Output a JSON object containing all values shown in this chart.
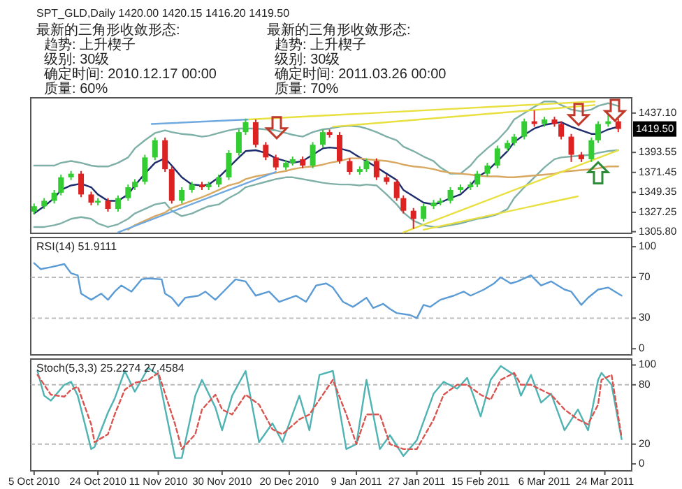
{
  "chart_data": [
    {
      "type": "candlestick",
      "title": "SPT_GLD,Daily  1420.00 1420.15 1416.20 1419.50",
      "annotations": [
        "最新的三角形收敛形态:",
        "  趋势: 上升楔子",
        "  级别: 30级",
        "  确定时间: 2010.12.17 00:00",
        "  质量: 60%",
        "最新的三角形收敛形态:",
        "  趋势: 上升楔子",
        "  级别: 30级",
        "  确定时间: 2011.03.26 00:00",
        "  质量: 70%",
        {
          "text": "1419.50",
          "y": 1419.5
        }
      ],
      "x": [
        "2010-10-05",
        "2010-10-08",
        "2010-10-11",
        "2010-10-13",
        "2010-10-16",
        "2010-10-19",
        "2010-10-22",
        "2010-10-24",
        "2010-10-27",
        "2010-10-30",
        "2010-11-02",
        "2010-11-04",
        "2010-11-07",
        "2010-11-10",
        "2010-11-13",
        "2010-11-15",
        "2010-11-18",
        "2010-11-21",
        "2010-11-24",
        "2010-11-26",
        "2010-11-29",
        "2010-12-02",
        "2010-12-05",
        "2010-12-07",
        "2010-12-10",
        "2010-12-13",
        "2010-12-16",
        "2010-12-19",
        "2010-12-21",
        "2010-12-24",
        "2010-12-27",
        "2010-12-30",
        "2011-01-01",
        "2011-01-04",
        "2011-01-07",
        "2011-01-10",
        "2011-01-12",
        "2011-01-15",
        "2011-01-18",
        "2011-01-21",
        "2011-01-23",
        "2011-01-26",
        "2011-01-29",
        "2011-02-01",
        "2011-02-03",
        "2011-02-06",
        "2011-02-09",
        "2011-02-12",
        "2011-02-14",
        "2011-02-17",
        "2011-02-20",
        "2011-02-23",
        "2011-02-25",
        "2011-02-28",
        "2011-03-03",
        "2011-03-06",
        "2011-03-09",
        "2011-03-11",
        "2011-03-14",
        "2011-03-17",
        "2011-03-20",
        "2011-03-22",
        "2011-03-25",
        "2011-03-28"
      ],
      "ohlc": [
        [
          1328,
          1337,
          1325,
          1334
        ],
        [
          1334,
          1343,
          1331,
          1340
        ],
        [
          1340,
          1352,
          1337,
          1349
        ],
        [
          1349,
          1369,
          1346,
          1366
        ],
        [
          1366,
          1373,
          1363,
          1370
        ],
        [
          1370,
          1373,
          1344,
          1347
        ],
        [
          1347,
          1350,
          1335,
          1338
        ],
        [
          1338,
          1343,
          1335,
          1340
        ],
        [
          1340,
          1343,
          1328,
          1331
        ],
        [
          1331,
          1346,
          1328,
          1343
        ],
        [
          1343,
          1358,
          1340,
          1355
        ],
        [
          1355,
          1364,
          1352,
          1361
        ],
        [
          1361,
          1391,
          1358,
          1388
        ],
        [
          1388,
          1410,
          1385,
          1407
        ],
        [
          1407,
          1410,
          1372,
          1375
        ],
        [
          1375,
          1378,
          1337,
          1340
        ],
        [
          1340,
          1355,
          1337,
          1352
        ],
        [
          1352,
          1361,
          1349,
          1358
        ],
        [
          1358,
          1361,
          1352,
          1355
        ],
        [
          1355,
          1361,
          1352,
          1358
        ],
        [
          1358,
          1369,
          1355,
          1366
        ],
        [
          1366,
          1396,
          1363,
          1393
        ],
        [
          1393,
          1419,
          1390,
          1416
        ],
        [
          1416,
          1431,
          1413,
          1427
        ],
        [
          1427,
          1430,
          1399,
          1402
        ],
        [
          1402,
          1405,
          1385,
          1388
        ],
        [
          1388,
          1391,
          1374,
          1377
        ],
        [
          1377,
          1385,
          1374,
          1382
        ],
        [
          1382,
          1389,
          1379,
          1386
        ],
        [
          1386,
          1389,
          1376,
          1379
        ],
        [
          1379,
          1405,
          1376,
          1402
        ],
        [
          1402,
          1419,
          1399,
          1416
        ],
        [
          1416,
          1419,
          1410,
          1413
        ],
        [
          1413,
          1416,
          1381,
          1384
        ],
        [
          1384,
          1387,
          1369,
          1372
        ],
        [
          1372,
          1378,
          1369,
          1375
        ],
        [
          1375,
          1387,
          1372,
          1384
        ],
        [
          1384,
          1387,
          1363,
          1366
        ],
        [
          1366,
          1369,
          1358,
          1361
        ],
        [
          1361,
          1364,
          1340,
          1343
        ],
        [
          1343,
          1346,
          1326,
          1329
        ],
        [
          1329,
          1332,
          1309,
          1320
        ],
        [
          1320,
          1337,
          1317,
          1334
        ],
        [
          1334,
          1341,
          1331,
          1338
        ],
        [
          1338,
          1343,
          1335,
          1340
        ],
        [
          1340,
          1355,
          1337,
          1352
        ],
        [
          1352,
          1358,
          1349,
          1355
        ],
        [
          1355,
          1361,
          1352,
          1358
        ],
        [
          1358,
          1373,
          1355,
          1370
        ],
        [
          1370,
          1382,
          1367,
          1379
        ],
        [
          1379,
          1401,
          1376,
          1398
        ],
        [
          1398,
          1407,
          1395,
          1404
        ],
        [
          1404,
          1414,
          1401,
          1411
        ],
        [
          1411,
          1431,
          1408,
          1428
        ],
        [
          1428,
          1440,
          1422,
          1425
        ],
        [
          1425,
          1433,
          1422,
          1430
        ],
        [
          1430,
          1433,
          1422,
          1425
        ],
        [
          1425,
          1428,
          1408,
          1411
        ],
        [
          1411,
          1414,
          1383,
          1391
        ],
        [
          1391,
          1394,
          1383,
          1386
        ],
        [
          1386,
          1410,
          1383,
          1407
        ],
        [
          1407,
          1428,
          1404,
          1425
        ],
        [
          1425,
          1437,
          1422,
          1428
        ],
        [
          1428,
          1431,
          1416,
          1419.5
        ]
      ],
      "series": [
        {
          "type": "line",
          "color": "#1c2c6c",
          "values": [
            1326,
            1334,
            1343,
            1352,
            1357,
            1359,
            1355,
            1347,
            1340,
            1340,
            1347,
            1357,
            1370,
            1382,
            1387,
            1379,
            1366,
            1358,
            1357,
            1358,
            1366,
            1377,
            1388,
            1395,
            1396,
            1393,
            1387,
            1384,
            1382,
            1384,
            1391,
            1398,
            1399,
            1398,
            1395,
            1388,
            1384,
            1377,
            1370,
            1363,
            1352,
            1345,
            1338,
            1336,
            1338,
            1343,
            1347,
            1357,
            1366,
            1373,
            1384,
            1395,
            1405,
            1413,
            1420,
            1424,
            1426,
            1427,
            1422,
            1418,
            1414,
            1414,
            1419,
            1422
          ]
        },
        {
          "type": "line",
          "color": "#7fb0a8",
          "values": [
            1379,
            1379,
            1379,
            1382,
            1384,
            1382,
            1379,
            1378,
            1378,
            1382,
            1388,
            1398,
            1407,
            1415,
            1418,
            1416,
            1414,
            1413,
            1411,
            1412,
            1415,
            1418,
            1420,
            1420,
            1420,
            1419,
            1418,
            1415,
            1413,
            1411,
            1416,
            1419,
            1420,
            1422,
            1423,
            1422,
            1420,
            1416,
            1411,
            1407,
            1400,
            1395,
            1389,
            1384,
            1377,
            1370,
            1370,
            1379,
            1388,
            1398,
            1407,
            1419,
            1430,
            1437,
            1444,
            1450,
            1450,
            1446,
            1441,
            1439,
            1441,
            1445,
            1448,
            1445
          ]
        },
        {
          "type": "line",
          "color": "#7fb0a8",
          "values": [
            1311,
            1311,
            1313,
            1315,
            1320,
            1322,
            1320,
            1315,
            1311,
            1314,
            1320,
            1326,
            1331,
            1336,
            1338,
            1329,
            1323,
            1326,
            1331,
            1334,
            1336,
            1343,
            1349,
            1355,
            1358,
            1361,
            1364,
            1366,
            1366,
            1364,
            1362,
            1360,
            1359,
            1358,
            1358,
            1357,
            1358,
            1357,
            1347,
            1336,
            1327,
            1318,
            1313,
            1311,
            1311,
            1313,
            1315,
            1318,
            1320,
            1322,
            1325,
            1331,
            1343,
            1355,
            1366,
            1377,
            1386,
            1388,
            1389,
            1390,
            1391,
            1393,
            1395,
            1396
          ]
        },
        {
          "type": "line",
          "color": "#d9a860",
          "values": [
            null,
            null,
            null,
            null,
            null,
            null,
            null,
            null,
            null,
            null,
            1308,
            1313,
            1318,
            1323,
            1327,
            1332,
            1336,
            1340,
            1344,
            1347,
            1352,
            1357,
            1360,
            1364,
            1367,
            1369,
            1371,
            1373,
            1375,
            1377,
            1378,
            1380,
            1382,
            1384,
            1387,
            1387,
            1386,
            1385,
            1384,
            1382,
            1380,
            1378,
            1377,
            1375,
            1373,
            1371,
            1370,
            1369,
            1368,
            1367,
            1367,
            1366,
            1366,
            1367,
            1368,
            1369,
            1370,
            1372,
            1373,
            1374,
            1375,
            1376,
            1378,
            1378
          ]
        },
        {
          "type": "line",
          "color": "#70a8e0",
          "x": [
            "2010-11-09",
            "2010-12-08"
          ],
          "values": [
            1425,
            1430
          ]
        },
        {
          "type": "line",
          "color": "#70a8e0",
          "x": [
            "2010-10-30",
            "2010-12-16"
          ],
          "values": [
            1305,
            1372
          ]
        },
        {
          "type": "line",
          "color": "#e8e040",
          "x": [
            "2010-12-08",
            "2011-03-21"
          ],
          "values": [
            1430,
            1450
          ]
        },
        {
          "type": "line",
          "color": "#e8e040",
          "x": [
            "2011-01-02",
            "2011-03-21"
          ],
          "values": [
            1422,
            1446
          ]
        },
        {
          "type": "line",
          "color": "#e8e040",
          "x": [
            "2011-01-23",
            "2011-03-28"
          ],
          "values": [
            1305,
            1396
          ]
        },
        {
          "type": "line",
          "color": "#e8e040",
          "x": [
            "2011-01-29",
            "2011-03-16"
          ],
          "values": [
            1308,
            1345
          ]
        }
      ],
      "xlim": [
        "2010-10-04",
        "2011-04-01"
      ],
      "ylim": [
        1304,
        1454
      ],
      "yticks": [
        {
          "value": 1437.1,
          "label": "1437.10"
        },
        {
          "value": 1393.55,
          "label": "1393.55"
        },
        {
          "value": 1371.45,
          "label": "1371.45"
        },
        {
          "value": 1349.35,
          "label": "1349.35"
        },
        {
          "value": 1327.25,
          "label": "1327.25"
        },
        {
          "value": 1305.8,
          "label": "1305.80"
        }
      ],
      "tick_labels": "y"
    },
    {
      "type": "line",
      "title": "RSI(14) 51.9111",
      "series": [
        {
          "color": "#5b9bd5",
          "x": [
            "2010-10-05",
            "2010-10-07",
            "2010-10-10",
            "2010-10-14",
            "2010-10-16",
            "2010-10-18",
            "2010-10-19",
            "2010-10-22",
            "2010-10-25",
            "2010-10-27",
            "2010-10-29",
            "2010-10-31",
            "2010-11-03",
            "2010-11-06",
            "2010-11-08",
            "2010-11-12",
            "2010-11-13",
            "2010-11-15",
            "2010-11-17",
            "2010-11-19",
            "2010-11-23",
            "2010-11-25",
            "2010-11-28",
            "2010-12-01",
            "2010-12-04",
            "2010-12-07",
            "2010-12-10",
            "2010-12-14",
            "2010-12-17",
            "2010-12-22",
            "2010-12-25",
            "2010-12-28",
            "2010-12-31",
            "2011-01-02",
            "2011-01-05",
            "2011-01-08",
            "2011-01-12",
            "2011-01-14",
            "2011-01-17",
            "2011-01-19",
            "2011-01-21",
            "2011-01-25",
            "2011-01-27",
            "2011-01-29",
            "2011-01-31",
            "2011-02-03",
            "2011-02-07",
            "2011-02-10",
            "2011-02-12",
            "2011-02-16",
            "2011-02-19",
            "2011-02-21",
            "2011-02-24",
            "2011-02-26",
            "2011-03-02",
            "2011-03-05",
            "2011-03-08",
            "2011-03-12",
            "2011-03-14",
            "2011-03-17",
            "2011-03-19",
            "2011-03-22",
            "2011-03-25",
            "2011-03-29"
          ],
          "values": [
            84,
            78,
            80,
            83,
            74,
            72,
            54,
            48,
            54,
            48,
            56,
            62,
            56,
            68,
            69,
            68,
            54,
            50,
            42,
            50,
            52,
            56,
            48,
            58,
            68,
            66,
            52,
            56,
            46,
            52,
            46,
            62,
            64,
            60,
            46,
            41,
            50,
            40,
            44,
            39,
            35,
            33,
            30,
            43,
            41,
            48,
            52,
            56,
            52,
            58,
            64,
            70,
            64,
            66,
            72,
            62,
            66,
            58,
            56,
            43,
            50,
            58,
            60,
            52
          ]
        }
      ],
      "ref_lines": [
        {
          "axis": "y",
          "value": 70,
          "line_style": "dashed",
          "color": "#bbbbbb"
        },
        {
          "axis": "y",
          "value": 30,
          "line_style": "dashed",
          "color": "#bbbbbb"
        }
      ],
      "xlim": [
        "2010-10-04",
        "2011-04-01"
      ],
      "ylim": [
        -6,
        109
      ],
      "yticks": [
        0,
        30,
        70,
        100
      ],
      "tick_labels": "y"
    },
    {
      "type": "line",
      "title": "Stoch(5,3,3) 25.2274 27.4584",
      "series": [
        {
          "color": "#4fb3b3",
          "line_style": "solid",
          "x": [
            "2010-10-06",
            "2010-10-08",
            "2010-10-10",
            "2010-10-14",
            "2010-10-16",
            "2010-10-18",
            "2010-10-22",
            "2010-10-23",
            "2010-10-27",
            "2010-10-29",
            "2010-11-01",
            "2010-11-04",
            "2010-11-08",
            "2010-11-11",
            "2010-11-16",
            "2010-11-18",
            "2010-11-22",
            "2010-11-24",
            "2010-11-28",
            "2010-11-30",
            "2010-12-03",
            "2010-12-07",
            "2010-12-11",
            "2010-12-15",
            "2010-12-18",
            "2010-12-23",
            "2010-12-26",
            "2010-12-29",
            "2011-01-02",
            "2011-01-06",
            "2011-01-09",
            "2011-01-12",
            "2011-01-16",
            "2011-01-19",
            "2011-01-23",
            "2011-01-27",
            "2011-02-01",
            "2011-02-04",
            "2011-02-08",
            "2011-02-11",
            "2011-02-15",
            "2011-02-18",
            "2011-02-21",
            "2011-02-25",
            "2011-02-27",
            "2011-03-02",
            "2011-03-05",
            "2011-03-08",
            "2011-03-12",
            "2011-03-16",
            "2011-03-19",
            "2011-03-22",
            "2011-03-23",
            "2011-03-26",
            "2011-03-29"
          ],
          "values": [
            94,
            69,
            64,
            80,
            83,
            69,
            15,
            17,
            52,
            66,
            94,
            73,
            97,
            90,
            6,
            6,
            69,
            85,
            57,
            34,
            69,
            94,
            22,
            41,
            22,
            69,
            34,
            90,
            94,
            15,
            20,
            85,
            15,
            29,
            8,
            24,
            71,
            83,
            76,
            87,
            48,
            85,
            99,
            90,
            69,
            90,
            62,
            71,
            34,
            55,
            34,
            85,
            92,
            80,
            25
          ]
        },
        {
          "color": "#d9534f",
          "line_style": "dashed",
          "x": [
            "2010-10-06",
            "2010-10-08",
            "2010-10-10",
            "2010-10-14",
            "2010-10-16",
            "2010-10-18",
            "2010-10-22",
            "2010-10-23",
            "2010-10-27",
            "2010-10-29",
            "2010-11-01",
            "2010-11-04",
            "2010-11-08",
            "2010-11-11",
            "2010-11-16",
            "2010-11-18",
            "2010-11-22",
            "2010-11-24",
            "2010-11-28",
            "2010-11-30",
            "2010-12-03",
            "2010-12-07",
            "2010-12-11",
            "2010-12-15",
            "2010-12-18",
            "2010-12-23",
            "2010-12-26",
            "2010-12-29",
            "2011-01-02",
            "2011-01-06",
            "2011-01-09",
            "2011-01-12",
            "2011-01-16",
            "2011-01-19",
            "2011-01-23",
            "2011-01-27",
            "2011-02-01",
            "2011-02-04",
            "2011-02-08",
            "2011-02-11",
            "2011-02-15",
            "2011-02-18",
            "2011-02-21",
            "2011-02-25",
            "2011-02-27",
            "2011-03-02",
            "2011-03-05",
            "2011-03-08",
            "2011-03-12",
            "2011-03-16",
            "2011-03-19",
            "2011-03-22",
            "2011-03-23",
            "2011-03-26",
            "2011-03-29"
          ],
          "values": [
            90,
            80,
            70,
            68,
            75,
            78,
            40,
            22,
            30,
            50,
            75,
            82,
            85,
            92,
            40,
            15,
            30,
            55,
            70,
            55,
            50,
            70,
            60,
            35,
            30,
            45,
            50,
            65,
            85,
            50,
            20,
            50,
            50,
            20,
            15,
            15,
            45,
            70,
            80,
            80,
            70,
            65,
            85,
            92,
            80,
            80,
            75,
            70,
            55,
            45,
            40,
            60,
            85,
            90,
            27
          ]
        }
      ],
      "ref_lines": [
        {
          "axis": "y",
          "value": 80,
          "line_style": "dashed",
          "color": "#bbbbbb"
        },
        {
          "axis": "y",
          "value": 20,
          "line_style": "dashed",
          "color": "#bbbbbb"
        }
      ],
      "xlim": [
        "2010-10-04",
        "2011-04-01"
      ],
      "ylim": [
        -7,
        106
      ],
      "yticks": [
        0,
        20,
        80,
        100
      ],
      "xticks": [
        {
          "value": "2010-10-05",
          "label": "5 Oct 2010"
        },
        {
          "value": "2010-10-24",
          "label": "24 Oct 2010"
        },
        {
          "value": "2010-11-11",
          "label": "11 Nov 2010"
        },
        {
          "value": "2010-11-30",
          "label": "30 Nov 2010"
        },
        {
          "value": "2010-12-20",
          "label": "20 Dec 2010"
        },
        {
          "value": "2011-01-09",
          "label": "9 Jan 2011"
        },
        {
          "value": "2011-01-27",
          "label": "27 Jan 2011"
        },
        {
          "value": "2011-02-15",
          "label": "15 Feb 2011"
        },
        {
          "value": "2011-03-06",
          "label": "6 Mar 2011"
        },
        {
          "value": "2011-03-24",
          "label": "24 Mar 2011"
        }
      ]
    }
  ]
}
